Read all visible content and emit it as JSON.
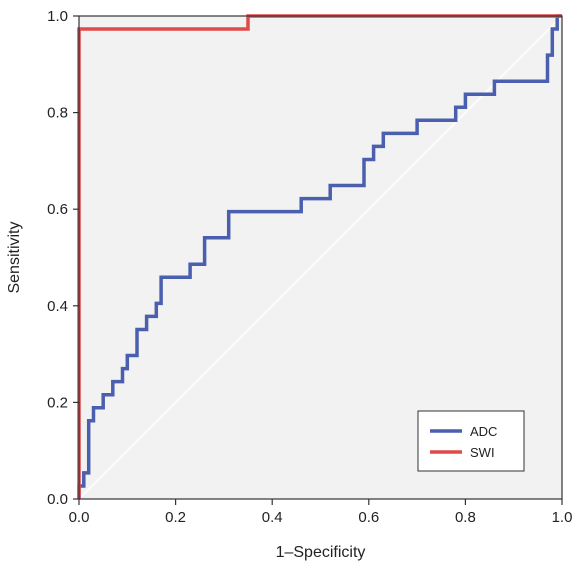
{
  "chart_data": {
    "type": "line",
    "title": "",
    "xlabel": "1–Specificity",
    "ylabel": "Sensitivity",
    "xlim": [
      0,
      1
    ],
    "ylim": [
      0,
      1
    ],
    "x_ticks": [
      "0.0",
      "0.2",
      "0.4",
      "0.6",
      "0.8",
      "1.0"
    ],
    "y_ticks": [
      "0.0",
      "0.2",
      "0.4",
      "0.6",
      "0.8",
      "1.0"
    ],
    "grid": false,
    "background": "#f2f2f2",
    "reference_line": {
      "x": [
        0,
        1
      ],
      "y": [
        0,
        1
      ],
      "color": "#ffffff"
    },
    "legend_position": "bottom-right",
    "series": [
      {
        "name": "ADC",
        "color": "#4a5fad",
        "points": [
          [
            0,
            0
          ],
          [
            0,
            0.027
          ],
          [
            0.01,
            0.027
          ],
          [
            0.01,
            0.054
          ],
          [
            0.02,
            0.054
          ],
          [
            0.02,
            0.162
          ],
          [
            0.03,
            0.162
          ],
          [
            0.03,
            0.189
          ],
          [
            0.05,
            0.189
          ],
          [
            0.05,
            0.216
          ],
          [
            0.07,
            0.216
          ],
          [
            0.07,
            0.243
          ],
          [
            0.09,
            0.243
          ],
          [
            0.09,
            0.27
          ],
          [
            0.1,
            0.27
          ],
          [
            0.1,
            0.297
          ],
          [
            0.12,
            0.297
          ],
          [
            0.12,
            0.351
          ],
          [
            0.14,
            0.351
          ],
          [
            0.14,
            0.378
          ],
          [
            0.16,
            0.378
          ],
          [
            0.16,
            0.405
          ],
          [
            0.17,
            0.405
          ],
          [
            0.17,
            0.459
          ],
          [
            0.23,
            0.459
          ],
          [
            0.23,
            0.486
          ],
          [
            0.26,
            0.486
          ],
          [
            0.26,
            0.541
          ],
          [
            0.31,
            0.541
          ],
          [
            0.31,
            0.595
          ],
          [
            0.46,
            0.595
          ],
          [
            0.46,
            0.622
          ],
          [
            0.52,
            0.622
          ],
          [
            0.52,
            0.649
          ],
          [
            0.59,
            0.649
          ],
          [
            0.59,
            0.703
          ],
          [
            0.61,
            0.703
          ],
          [
            0.61,
            0.73
          ],
          [
            0.63,
            0.73
          ],
          [
            0.63,
            0.757
          ],
          [
            0.7,
            0.757
          ],
          [
            0.7,
            0.784
          ],
          [
            0.78,
            0.784
          ],
          [
            0.78,
            0.811
          ],
          [
            0.8,
            0.811
          ],
          [
            0.8,
            0.838
          ],
          [
            0.86,
            0.838
          ],
          [
            0.86,
            0.865
          ],
          [
            0.97,
            0.865
          ],
          [
            0.97,
            0.919
          ],
          [
            0.98,
            0.919
          ],
          [
            0.98,
            0.973
          ],
          [
            0.99,
            0.973
          ],
          [
            0.99,
            1.0
          ],
          [
            1.0,
            1.0
          ]
        ]
      },
      {
        "name": "SWI",
        "color": "#e04a4a",
        "points": [
          [
            0,
            0
          ],
          [
            0,
            0.973
          ],
          [
            0.35,
            0.973
          ],
          [
            0.35,
            1.0
          ],
          [
            1.0,
            1.0
          ]
        ]
      }
    ]
  }
}
